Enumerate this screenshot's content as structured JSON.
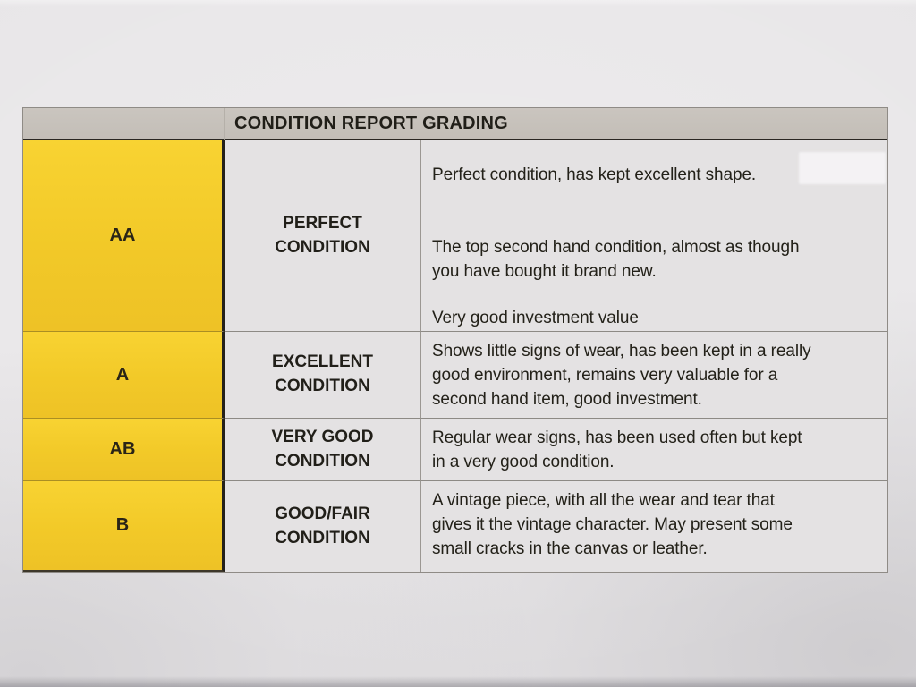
{
  "document": {
    "kind": "photographed printed table",
    "colors": {
      "paper": "#e8e6e8",
      "header_bar": "#c6c1ba",
      "grade_column_yellow": "#f3c929",
      "cell_background": "#e4e2e3",
      "text": "#232119"
    },
    "table": {
      "header": {
        "title": "CONDITION REPORT GRADING"
      },
      "rows": [
        {
          "grade": "AA",
          "condition": "PERFECT CONDITION",
          "description": [
            "Perfect condition, has kept excellent shape.",
            "The top second hand condition, almost as though\nyou have bought it brand new.",
            "Very good investment value"
          ]
        },
        {
          "grade": "A",
          "condition": "EXCELLENT CONDITION",
          "description": [
            "Shows little signs of wear, has been kept in a really\ngood environment, remains very valuable for a\nsecond hand item, good investment."
          ]
        },
        {
          "grade": "AB",
          "condition": "VERY GOOD CONDITION",
          "description": [
            "Regular wear signs, has been used often but kept\nin a very good condition."
          ]
        },
        {
          "grade": "B",
          "condition": "GOOD/FAIR CONDITION",
          "description": [
            "A vintage piece, with all the wear and tear that\ngives it the vintage character. May present some\nsmall cracks in the canvas or leather."
          ]
        }
      ]
    }
  }
}
